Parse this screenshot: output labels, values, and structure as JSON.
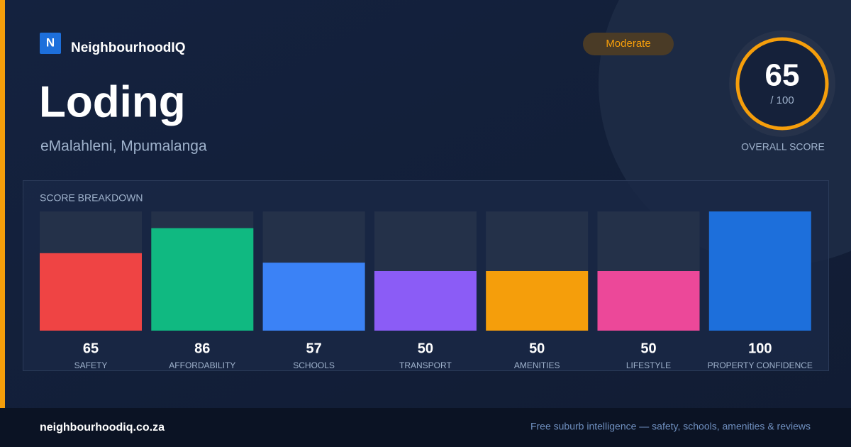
{
  "brand": {
    "logo": "N",
    "name": "NeighbourhoodIQ"
  },
  "title": "Loding",
  "subtitle": "eMalahleni, Mpumalanga",
  "badge": "Moderate",
  "score": {
    "value": 65,
    "max_label": "/ 100",
    "label": "OVERALL SCORE"
  },
  "chart_data": {
    "type": "bar",
    "title": "SCORE BREAKDOWN",
    "categories": [
      "SAFETY",
      "AFFORDABILITY",
      "SCHOOLS",
      "TRANSPORT",
      "AMENITIES",
      "LIFESTYLE",
      "PROPERTY CONFIDENCE"
    ],
    "values": [
      65,
      86,
      57,
      50,
      50,
      50,
      100
    ],
    "colors": [
      "#ef4444",
      "#10b981",
      "#3b82f6",
      "#8b5cf6",
      "#f59e0b",
      "#ec4899",
      "#1d6fdb"
    ],
    "ylim": [
      0,
      100
    ]
  },
  "footer": {
    "site": "neighbourhoodiq.co.za",
    "tagline": "Free suburb intelligence — safety, schools, amenities & reviews"
  }
}
